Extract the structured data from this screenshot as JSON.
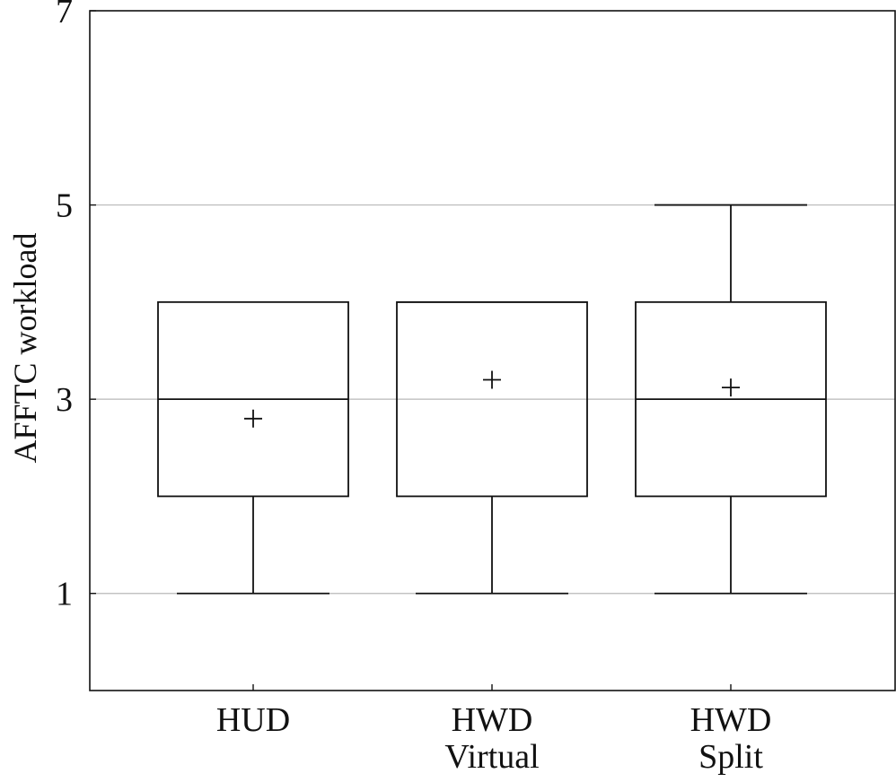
{
  "chart_data": {
    "type": "box",
    "title": "",
    "xlabel": "",
    "ylabel": "AFFTC workload",
    "ylim": [
      0,
      7
    ],
    "yticks": [
      1,
      3,
      5,
      7
    ],
    "grid": "horizontal",
    "categories": [
      [
        "HUD"
      ],
      [
        "HWD",
        "Virtual"
      ],
      [
        "HWD",
        "Split"
      ]
    ],
    "boxes": [
      {
        "whisker_low": 1,
        "q1": 2,
        "median": 3,
        "q3": 4,
        "whisker_high": 4,
        "mean": 2.8
      },
      {
        "whisker_low": 1,
        "q1": 2,
        "median": 4,
        "q3": 4,
        "whisker_high": 4,
        "mean": 3.2
      },
      {
        "whisker_low": 1,
        "q1": 2,
        "median": 3,
        "q3": 4,
        "whisker_high": 5,
        "mean": 3.12
      }
    ]
  }
}
